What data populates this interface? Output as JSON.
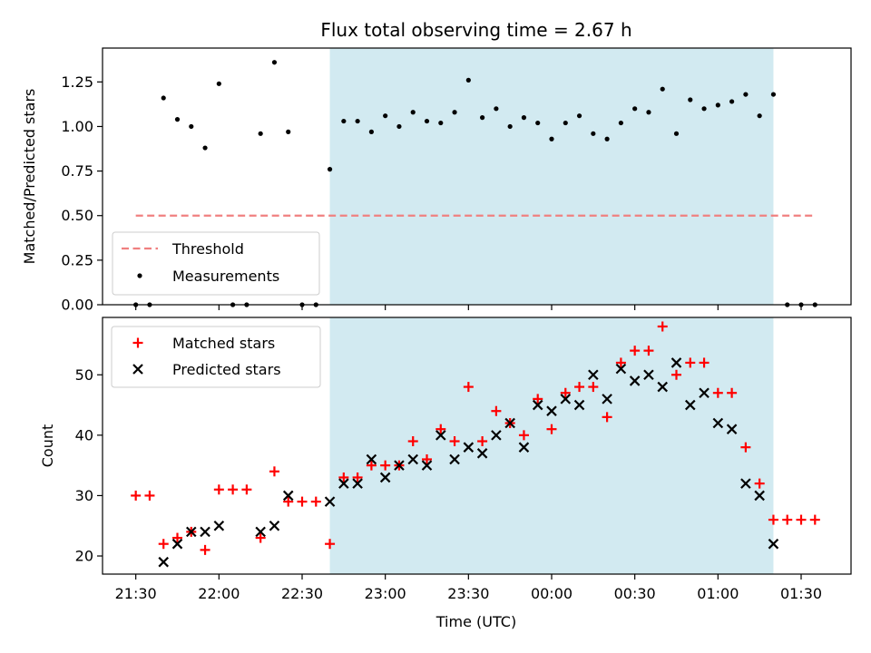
{
  "chart_data": {
    "title": "Flux total observing time = 2.67 h",
    "xlabel": "Time (UTC)",
    "x_unit": "minutes after 21:30 UTC",
    "x_ticks": [
      0,
      30,
      60,
      90,
      120,
      150,
      180,
      210,
      240
    ],
    "x_tick_labels": [
      "21:30",
      "22:00",
      "22:30",
      "23:00",
      "23:30",
      "00:00",
      "00:30",
      "01:00",
      "01:30"
    ],
    "xlim": [
      -12,
      258
    ],
    "observing_window": [
      70,
      230
    ],
    "window_color": "#add8e6",
    "panels": [
      {
        "type": "scatter",
        "ylabel": "Matched/Predicted stars",
        "ylim": [
          0,
          1.44
        ],
        "y_ticks": [
          0.0,
          0.25,
          0.5,
          0.75,
          1.0,
          1.25
        ],
        "y_tick_labels": [
          "0.00",
          "0.25",
          "0.50",
          "0.75",
          "1.00",
          "1.25"
        ],
        "legend": {
          "position": "lower-left"
        },
        "threshold": {
          "name": "Threshold",
          "y": 0.5,
          "x_range": [
            0,
            245
          ],
          "color": "#f08080",
          "dash": true
        },
        "series": [
          {
            "name": "Measurements",
            "marker": "dot",
            "color": "#000000",
            "points": [
              [
                0,
                0.0
              ],
              [
                5,
                0.0
              ],
              [
                10,
                1.16
              ],
              [
                15,
                1.04
              ],
              [
                20,
                1.0
              ],
              [
                25,
                0.88
              ],
              [
                30,
                1.24
              ],
              [
                35,
                0.0
              ],
              [
                40,
                0.0
              ],
              [
                45,
                0.96
              ],
              [
                50,
                1.36
              ],
              [
                55,
                0.97
              ],
              [
                60,
                0.0
              ],
              [
                65,
                0.0
              ],
              [
                70,
                0.76
              ],
              [
                75,
                1.03
              ],
              [
                80,
                1.03
              ],
              [
                85,
                0.97
              ],
              [
                90,
                1.06
              ],
              [
                95,
                1.0
              ],
              [
                100,
                1.08
              ],
              [
                105,
                1.03
              ],
              [
                110,
                1.02
              ],
              [
                115,
                1.08
              ],
              [
                120,
                1.26
              ],
              [
                125,
                1.05
              ],
              [
                130,
                1.1
              ],
              [
                135,
                1.0
              ],
              [
                140,
                1.05
              ],
              [
                145,
                1.02
              ],
              [
                150,
                0.93
              ],
              [
                155,
                1.02
              ],
              [
                160,
                1.06
              ],
              [
                165,
                0.96
              ],
              [
                170,
                0.93
              ],
              [
                175,
                1.02
              ],
              [
                180,
                1.1
              ],
              [
                185,
                1.08
              ],
              [
                190,
                1.21
              ],
              [
                195,
                0.96
              ],
              [
                200,
                1.15
              ],
              [
                205,
                1.1
              ],
              [
                210,
                1.12
              ],
              [
                215,
                1.14
              ],
              [
                220,
                1.18
              ],
              [
                225,
                1.06
              ],
              [
                230,
                1.18
              ],
              [
                235,
                0.0
              ],
              [
                240,
                0.0
              ],
              [
                245,
                0.0
              ]
            ]
          }
        ]
      },
      {
        "type": "scatter",
        "ylabel": "Count",
        "ylim": [
          17,
          59.5
        ],
        "y_ticks": [
          20,
          30,
          40,
          50
        ],
        "y_tick_labels": [
          "20",
          "30",
          "40",
          "50"
        ],
        "legend": {
          "position": "upper-left"
        },
        "series": [
          {
            "name": "Matched stars",
            "marker": "plus",
            "color": "#ff0000",
            "points": [
              [
                0,
                30
              ],
              [
                5,
                30
              ],
              [
                10,
                22
              ],
              [
                15,
                23
              ],
              [
                20,
                24
              ],
              [
                25,
                21
              ],
              [
                30,
                31
              ],
              [
                35,
                31
              ],
              [
                40,
                31
              ],
              [
                45,
                23
              ],
              [
                50,
                34
              ],
              [
                55,
                29
              ],
              [
                60,
                29
              ],
              [
                65,
                29
              ],
              [
                70,
                22
              ],
              [
                75,
                33
              ],
              [
                80,
                33
              ],
              [
                85,
                35
              ],
              [
                90,
                35
              ],
              [
                95,
                35
              ],
              [
                100,
                39
              ],
              [
                105,
                36
              ],
              [
                110,
                41
              ],
              [
                115,
                39
              ],
              [
                120,
                48
              ],
              [
                125,
                39
              ],
              [
                130,
                44
              ],
              [
                135,
                42
              ],
              [
                140,
                40
              ],
              [
                145,
                46
              ],
              [
                150,
                41
              ],
              [
                155,
                47
              ],
              [
                160,
                48
              ],
              [
                165,
                48
              ],
              [
                170,
                43
              ],
              [
                175,
                52
              ],
              [
                180,
                54
              ],
              [
                185,
                54
              ],
              [
                190,
                58
              ],
              [
                195,
                50
              ],
              [
                200,
                52
              ],
              [
                205,
                52
              ],
              [
                210,
                47
              ],
              [
                215,
                47
              ],
              [
                220,
                38
              ],
              [
                225,
                32
              ],
              [
                230,
                26
              ],
              [
                235,
                26
              ],
              [
                240,
                26
              ],
              [
                245,
                26
              ]
            ]
          },
          {
            "name": "Predicted stars",
            "marker": "x",
            "color": "#000000",
            "points": [
              [
                10,
                19
              ],
              [
                15,
                22
              ],
              [
                20,
                24
              ],
              [
                25,
                24
              ],
              [
                30,
                25
              ],
              [
                45,
                24
              ],
              [
                50,
                25
              ],
              [
                55,
                30
              ],
              [
                70,
                29
              ],
              [
                75,
                32
              ],
              [
                80,
                32
              ],
              [
                85,
                36
              ],
              [
                90,
                33
              ],
              [
                95,
                35
              ],
              [
                100,
                36
              ],
              [
                105,
                35
              ],
              [
                110,
                40
              ],
              [
                115,
                36
              ],
              [
                120,
                38
              ],
              [
                125,
                37
              ],
              [
                130,
                40
              ],
              [
                135,
                42
              ],
              [
                140,
                38
              ],
              [
                145,
                45
              ],
              [
                150,
                44
              ],
              [
                155,
                46
              ],
              [
                160,
                45
              ],
              [
                165,
                50
              ],
              [
                170,
                46
              ],
              [
                175,
                51
              ],
              [
                180,
                49
              ],
              [
                185,
                50
              ],
              [
                190,
                48
              ],
              [
                195,
                52
              ],
              [
                200,
                45
              ],
              [
                205,
                47
              ],
              [
                210,
                42
              ],
              [
                215,
                41
              ],
              [
                220,
                32
              ],
              [
                225,
                30
              ],
              [
                230,
                22
              ]
            ]
          }
        ]
      }
    ]
  }
}
